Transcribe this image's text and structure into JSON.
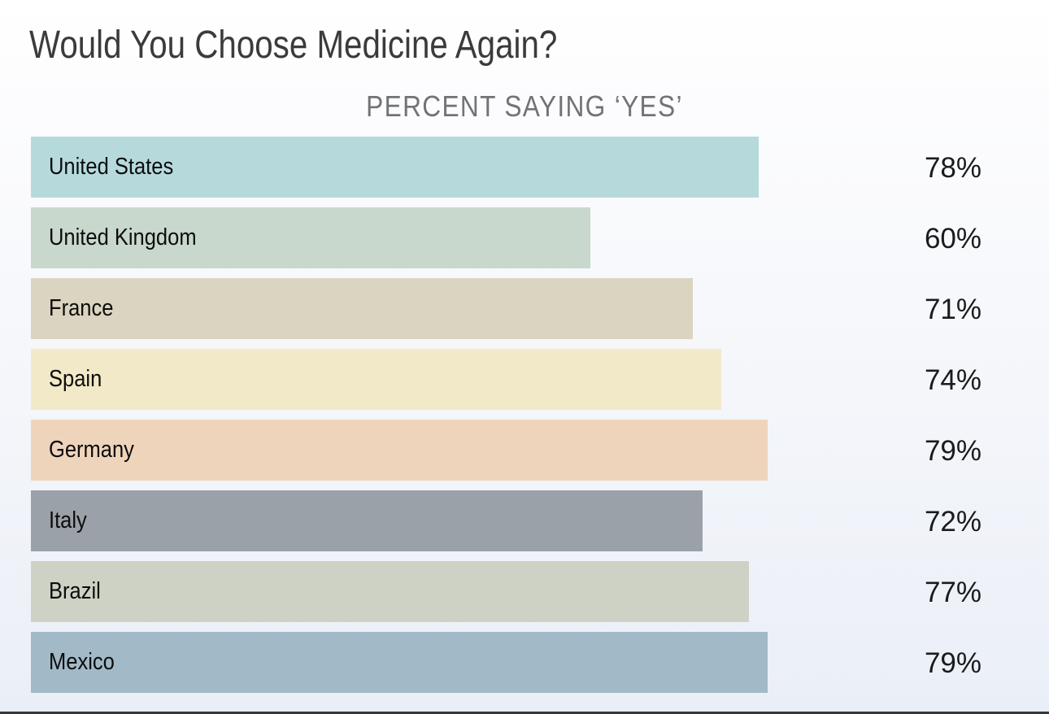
{
  "header": {
    "title": "Would You Choose Medicine Again?",
    "subtitle": "PERCENT SAYING ‘YES’"
  },
  "chart_data": {
    "type": "bar",
    "orientation": "horizontal",
    "title": "Would You Choose Medicine Again?",
    "subtitle": "PERCENT SAYING ‘YES’",
    "categories": [
      "United States",
      "United Kingdom",
      "France",
      "Spain",
      "Germany",
      "Italy",
      "Brazil",
      "Mexico"
    ],
    "values": [
      78,
      60,
      71,
      74,
      79,
      72,
      77,
      79
    ],
    "value_suffix": "%",
    "value_labels": [
      "78%",
      "60%",
      "71%",
      "74%",
      "79%",
      "72%",
      "77%",
      "79%"
    ],
    "bar_colors": [
      "#b6dadc",
      "#c8d8cc",
      "#dbd4c1",
      "#f2e9c8",
      "#efd4bc",
      "#9ba1a9",
      "#ced2c4",
      "#a2b9c7"
    ],
    "xlim": [
      0,
      100
    ],
    "grid": false,
    "legend": false,
    "category_label_position": "inside-left",
    "value_label_position": "right",
    "background_gradient": [
      "#ffffff",
      "#ebeff7"
    ],
    "title_color": "#3b3b3d",
    "subtitle_color": "#717376",
    "label_color": "#0d0d0d",
    "value_color": "#1a1b1d"
  }
}
